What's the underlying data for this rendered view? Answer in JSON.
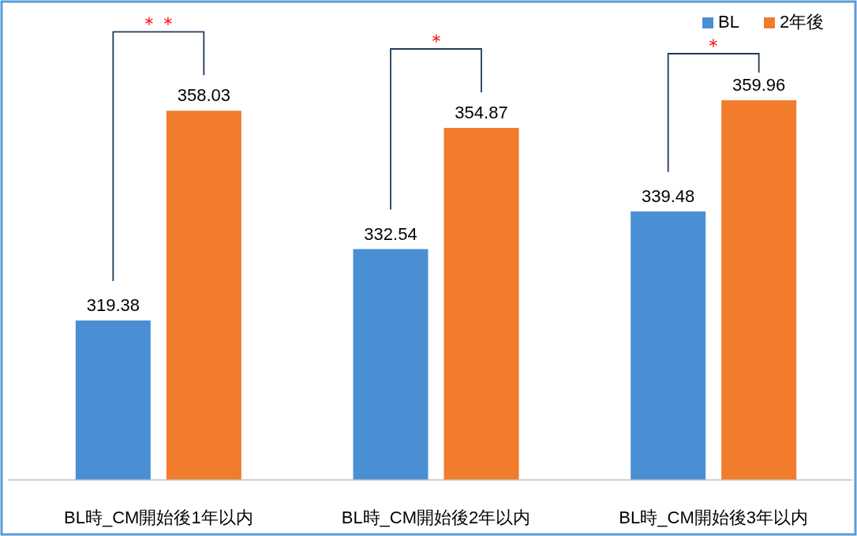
{
  "chart_data": {
    "type": "bar",
    "categories": [
      "BL時_CM開始後1年以内",
      "BL時_CM開始後2年以内",
      "BL時_CM開始後3年以内"
    ],
    "series": [
      {
        "name": "BL",
        "color": "#4a8fd3",
        "values": [
          319.38,
          332.54,
          339.48
        ]
      },
      {
        "name": "2年後",
        "color": "#f07c2c",
        "values": [
          358.03,
          354.87,
          359.96
        ]
      }
    ],
    "ylim": [
      290,
      378
    ],
    "data_labels": true,
    "legend": "top right",
    "grid": false,
    "annotations": [
      "＊＊",
      "＊",
      "＊"
    ]
  }
}
